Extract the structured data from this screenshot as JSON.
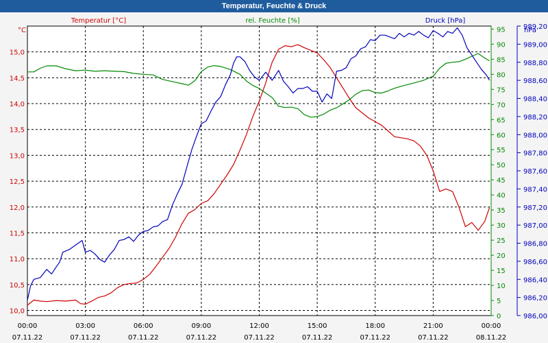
{
  "window": {
    "title": "Temperatur, Feuchte & Druck"
  },
  "colors": {
    "temperature": "#cc0000",
    "humidity": "#008800",
    "pressure": "#0000bb",
    "grid": "#000000",
    "background": "#ffffff"
  },
  "chart_data": {
    "type": "line",
    "title": "Temperatur, Feuchte & Druck",
    "grid": true,
    "x_ticks": [
      {
        "time": "00:00",
        "date": "07.11.22"
      },
      {
        "time": "03:00",
        "date": "07.11.22"
      },
      {
        "time": "06:00",
        "date": "07.11.22"
      },
      {
        "time": "09:00",
        "date": "07.11.22"
      },
      {
        "time": "12:00",
        "date": "07.11.22"
      },
      {
        "time": "15:00",
        "date": "07.11.22"
      },
      {
        "time": "18:00",
        "date": "07.11.22"
      },
      {
        "time": "21:00",
        "date": "07.11.22"
      },
      {
        "time": "00:00",
        "date": "08.11.22"
      }
    ],
    "axes": {
      "temperature": {
        "unit": "°C",
        "ylim": [
          9.9,
          15.5
        ],
        "ticks": [
          "10,0",
          "10,5",
          "11,0",
          "11,5",
          "12,0",
          "12,5",
          "13,0",
          "13,5",
          "14,0",
          "14,5",
          "15,0"
        ]
      },
      "humidity": {
        "unit": "%",
        "ylim": [
          0,
          96
        ],
        "ticks": [
          "0",
          "5",
          "10",
          "15",
          "20",
          "25",
          "30",
          "35",
          "40",
          "45",
          "50",
          "55",
          "60",
          "65",
          "70",
          "75",
          "80",
          "85",
          "90",
          "95"
        ]
      },
      "pressure": {
        "unit": "hPa",
        "ylim": [
          986.0,
          989.2
        ],
        "ticks": [
          "986,00",
          "986,20",
          "986,40",
          "986,60",
          "986,80",
          "987,00",
          "987,20",
          "987,40",
          "987,60",
          "987,80",
          "988,00",
          "988,20",
          "988,40",
          "988,60",
          "988,80",
          "989,00",
          "989,20"
        ]
      }
    },
    "series": [
      {
        "name": "Temperatur [°C]",
        "axis": "temperature",
        "color": "#cc0000",
        "x": [
          "00:00",
          "00:20",
          "00:40",
          "01:00",
          "01:30",
          "02:00",
          "02:30",
          "02:45",
          "03:00",
          "03:20",
          "03:40",
          "04:00",
          "04:20",
          "04:40",
          "05:00",
          "05:20",
          "05:40",
          "06:00",
          "06:20",
          "06:40",
          "07:00",
          "07:20",
          "07:40",
          "08:00",
          "08:20",
          "08:40",
          "09:00",
          "09:20",
          "09:40",
          "10:00",
          "10:20",
          "10:40",
          "11:00",
          "11:20",
          "11:40",
          "12:00",
          "12:20",
          "12:40",
          "13:00",
          "13:20",
          "13:40",
          "14:00",
          "14:20",
          "14:40",
          "15:00",
          "15:20",
          "15:40",
          "16:00",
          "16:20",
          "16:40",
          "17:00",
          "17:20",
          "17:40",
          "18:00",
          "18:20",
          "18:40",
          "19:00",
          "19:20",
          "19:40",
          "20:00",
          "20:20",
          "20:40",
          "21:00",
          "21:20",
          "21:40",
          "22:00",
          "22:20",
          "22:40",
          "23:00",
          "23:20",
          "23:40",
          "23:55"
        ],
        "values": [
          10.1,
          10.2,
          10.18,
          10.17,
          10.19,
          10.18,
          10.2,
          10.13,
          10.12,
          10.18,
          10.25,
          10.28,
          10.34,
          10.44,
          10.5,
          10.52,
          10.53,
          10.6,
          10.7,
          10.86,
          11.03,
          11.2,
          11.42,
          11.68,
          11.88,
          11.95,
          12.07,
          12.12,
          12.26,
          12.44,
          12.62,
          12.82,
          13.1,
          13.4,
          13.75,
          14.05,
          14.4,
          14.8,
          15.05,
          15.12,
          15.1,
          15.14,
          15.08,
          15.03,
          14.98,
          14.85,
          14.7,
          14.5,
          14.3,
          14.1,
          13.92,
          13.82,
          13.72,
          13.65,
          13.58,
          13.47,
          13.36,
          13.34,
          13.32,
          13.28,
          13.18,
          13.0,
          12.7,
          12.3,
          12.35,
          12.3,
          12.0,
          11.62,
          11.7,
          11.55,
          11.72,
          11.99
        ]
      },
      {
        "name": "rel. Feuchte [%]",
        "axis": "humidity",
        "color": "#008800",
        "x": [
          "00:00",
          "00:20",
          "00:40",
          "01:00",
          "01:30",
          "02:00",
          "02:30",
          "03:00",
          "03:30",
          "04:00",
          "04:30",
          "05:00",
          "05:30",
          "06:00",
          "06:30",
          "07:00",
          "07:30",
          "08:00",
          "08:20",
          "08:40",
          "09:00",
          "09:20",
          "09:40",
          "10:00",
          "10:30",
          "11:00",
          "11:20",
          "11:40",
          "12:00",
          "12:20",
          "12:40",
          "13:00",
          "13:20",
          "13:40",
          "14:00",
          "14:20",
          "14:40",
          "15:00",
          "15:20",
          "15:40",
          "16:00",
          "16:20",
          "16:40",
          "17:00",
          "17:20",
          "17:40",
          "18:00",
          "18:20",
          "18:40",
          "19:00",
          "19:30",
          "20:00",
          "20:30",
          "21:00",
          "21:20",
          "21:40",
          "22:00",
          "22:20",
          "22:40",
          "23:00",
          "23:20",
          "23:40",
          "23:55"
        ],
        "values": [
          80.8,
          80.8,
          82.0,
          82.8,
          82.8,
          81.8,
          81.2,
          81.4,
          81.0,
          81.2,
          81.0,
          80.9,
          80.3,
          80.0,
          79.8,
          78.3,
          77.6,
          76.9,
          76.4,
          77.9,
          80.9,
          82.4,
          82.9,
          82.6,
          81.6,
          80.0,
          77.8,
          76.3,
          75.3,
          73.8,
          72.3,
          69.4,
          69.0,
          69.1,
          68.6,
          66.6,
          65.8,
          66.0,
          66.8,
          68.1,
          68.9,
          70.2,
          71.6,
          73.4,
          74.6,
          74.8,
          73.9,
          73.8,
          74.5,
          75.4,
          76.3,
          77.1,
          78.0,
          79.4,
          82.0,
          83.7,
          84.0,
          84.2,
          85.0,
          86.0,
          86.9,
          85.4,
          84.5
        ]
      },
      {
        "name": "Druck [hPa]",
        "axis": "pressure",
        "color": "#0000bb",
        "x": [
          "00:00",
          "00:10",
          "00:20",
          "00:40",
          "01:00",
          "01:15",
          "01:30",
          "01:40",
          "01:50",
          "02:10",
          "02:30",
          "02:50",
          "03:00",
          "03:15",
          "03:30",
          "03:45",
          "04:00",
          "04:15",
          "04:30",
          "04:45",
          "05:00",
          "05:15",
          "05:30",
          "05:45",
          "06:00",
          "06:15",
          "06:30",
          "06:45",
          "07:00",
          "07:15",
          "07:30",
          "07:45",
          "08:00",
          "08:15",
          "08:30",
          "08:45",
          "09:00",
          "09:15",
          "09:30",
          "09:45",
          "10:00",
          "10:15",
          "10:30",
          "10:40",
          "10:50",
          "11:00",
          "11:15",
          "11:30",
          "11:45",
          "12:00",
          "12:20",
          "12:40",
          "13:00",
          "13:15",
          "13:30",
          "13:45",
          "14:00",
          "14:15",
          "14:30",
          "14:45",
          "15:00",
          "15:15",
          "15:30",
          "15:45",
          "16:00",
          "16:15",
          "16:30",
          "16:45",
          "17:00",
          "17:15",
          "17:30",
          "17:45",
          "18:00",
          "18:15",
          "18:30",
          "18:45",
          "19:00",
          "19:15",
          "19:30",
          "19:45",
          "20:00",
          "20:15",
          "20:30",
          "20:45",
          "21:00",
          "21:15",
          "21:30",
          "21:45",
          "22:00",
          "22:15",
          "22:30",
          "22:45",
          "23:00",
          "23:15",
          "23:30",
          "23:45",
          "23:55"
        ],
        "values": [
          986.17,
          986.33,
          986.4,
          986.42,
          986.51,
          986.46,
          986.54,
          986.59,
          986.7,
          986.73,
          986.78,
          986.83,
          986.7,
          986.72,
          986.68,
          986.62,
          986.59,
          986.67,
          986.73,
          986.83,
          986.84,
          986.87,
          986.82,
          986.89,
          986.93,
          986.94,
          986.98,
          986.99,
          987.04,
          987.06,
          987.22,
          987.34,
          987.45,
          987.64,
          987.83,
          987.98,
          988.12,
          988.15,
          988.26,
          988.36,
          988.42,
          988.55,
          988.66,
          988.79,
          988.86,
          988.86,
          988.81,
          988.71,
          988.64,
          988.6,
          988.69,
          988.6,
          988.71,
          988.59,
          988.53,
          988.46,
          988.51,
          988.51,
          988.53,
          988.48,
          988.48,
          988.36,
          988.45,
          988.4,
          988.7,
          988.71,
          988.74,
          988.84,
          988.87,
          988.95,
          988.97,
          989.05,
          989.04,
          989.1,
          989.1,
          989.08,
          989.06,
          989.12,
          989.08,
          989.12,
          989.1,
          989.14,
          989.1,
          989.07,
          989.15,
          989.12,
          989.08,
          989.14,
          989.12,
          989.18,
          989.1,
          988.96,
          988.88,
          988.8,
          988.72,
          988.66,
          988.6
        ]
      }
    ]
  }
}
